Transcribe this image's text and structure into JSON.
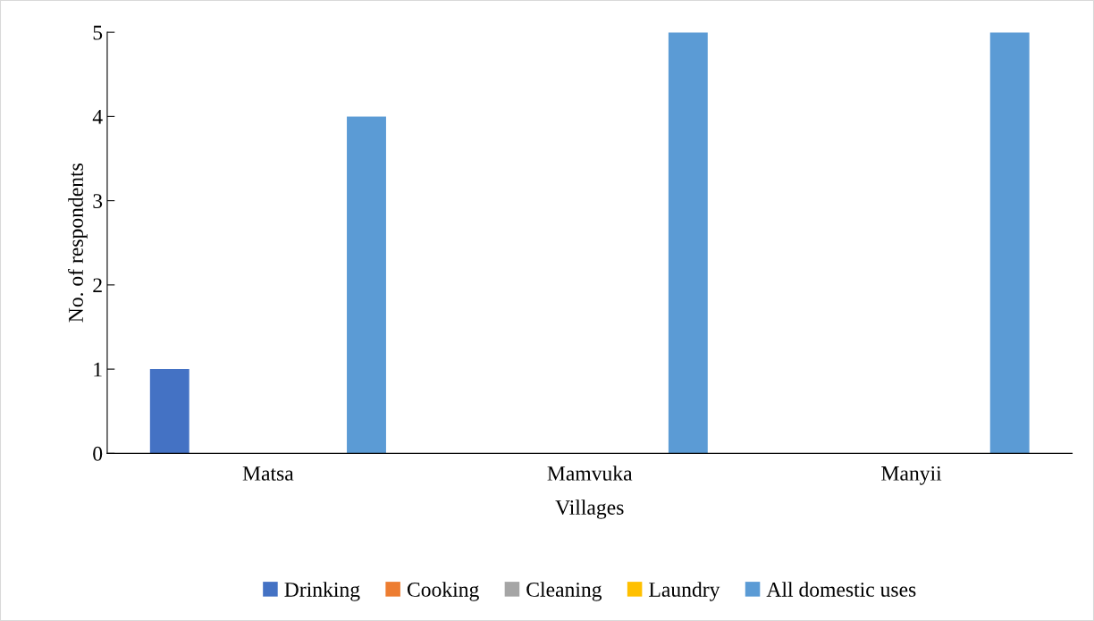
{
  "chart_data": {
    "type": "bar",
    "xlabel": "Villages",
    "ylabel": "No. of respondents",
    "categories": [
      "Matsa",
      "Mamvuka",
      "Manyii"
    ],
    "series": [
      {
        "name": "Drinking",
        "color": "#4472c4",
        "values": [
          1,
          0,
          0
        ]
      },
      {
        "name": "Cooking",
        "color": "#ed7d31",
        "values": [
          0,
          0,
          0
        ]
      },
      {
        "name": "Cleaning",
        "color": "#a5a5a5",
        "values": [
          0,
          0,
          0
        ]
      },
      {
        "name": "Laundry",
        "color": "#ffc000",
        "values": [
          0,
          0,
          0
        ]
      },
      {
        "name": "All domestic uses",
        "color": "#5b9bd5",
        "values": [
          4,
          5,
          5
        ]
      }
    ],
    "ylim": [
      0,
      5
    ],
    "yticks": [
      0,
      1,
      2,
      3,
      4,
      5
    ],
    "grid": false,
    "legend": "bottom"
  }
}
